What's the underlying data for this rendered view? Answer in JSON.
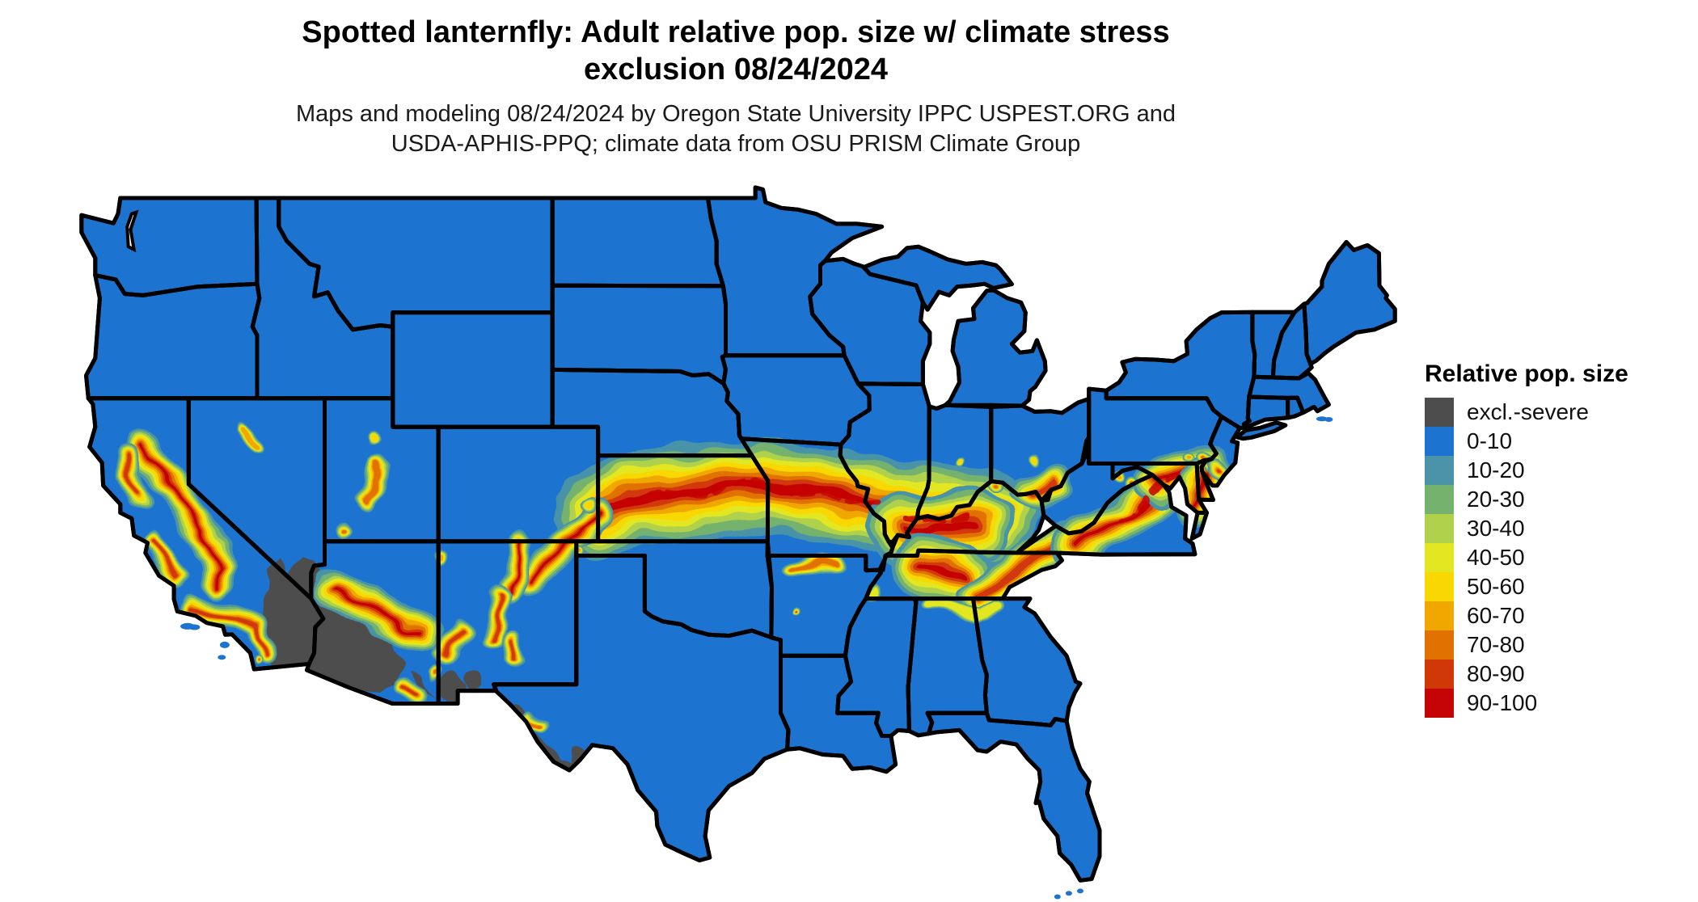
{
  "header": {
    "title_line1": "Spotted lanternfly: Adult relative pop. size w/ climate stress",
    "title_line2": "exclusion 08/24/2024",
    "subtitle_line1": "Maps and modeling 08/24/2024 by Oregon State University IPPC USPEST.ORG and",
    "subtitle_line2": "USDA-APHIS-PPQ; climate data from OSU PRISM Climate Group"
  },
  "legend": {
    "title": "Relative pop. size",
    "items": [
      {
        "label": "excl.-severe",
        "color": "#4d4d4d"
      },
      {
        "label": "0-10",
        "color": "#1c74d0"
      },
      {
        "label": "10-20",
        "color": "#4a93a8"
      },
      {
        "label": "20-30",
        "color": "#75b26e"
      },
      {
        "label": "30-40",
        "color": "#b0d14c"
      },
      {
        "label": "40-50",
        "color": "#e2e722"
      },
      {
        "label": "50-60",
        "color": "#f8d800"
      },
      {
        "label": "60-70",
        "color": "#f0a800"
      },
      {
        "label": "70-80",
        "color": "#e27200"
      },
      {
        "label": "80-90",
        "color": "#d13808"
      },
      {
        "label": "90-100",
        "color": "#c50505"
      }
    ]
  },
  "map": {
    "background": "#ffffff",
    "land_fill": "#1c74d0",
    "border_color": "#000000",
    "exclusion_color": "#4d4d4d"
  }
}
